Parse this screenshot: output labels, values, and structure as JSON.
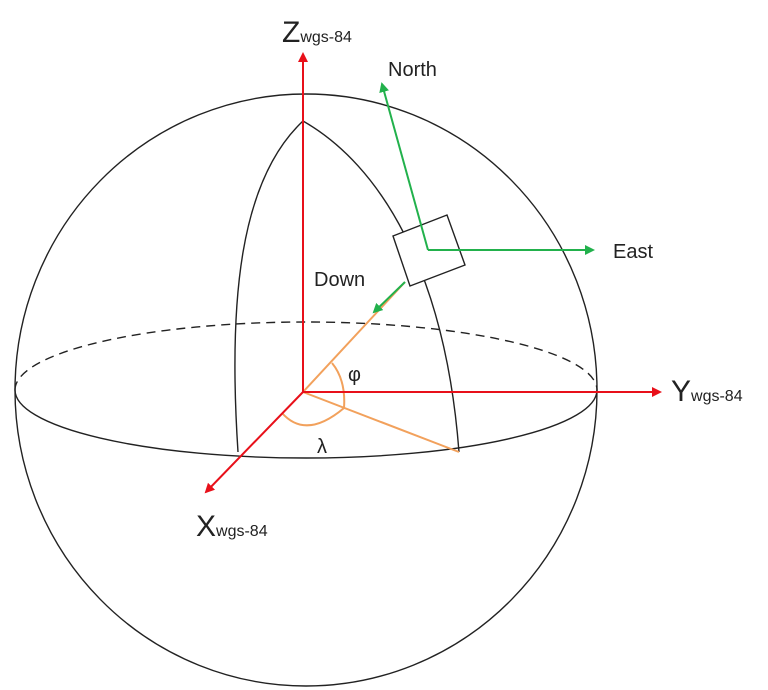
{
  "diagram": {
    "axes": {
      "z": {
        "main": "Z",
        "sub": "wgs-84"
      },
      "y": {
        "main": "Y",
        "sub": "wgs-84"
      },
      "x": {
        "main": "X",
        "sub": "wgs-84"
      }
    },
    "local_frame": {
      "north": "North",
      "east": "East",
      "down": "Down"
    },
    "angles": {
      "latitude": "φ",
      "longitude": "λ"
    }
  },
  "colors": {
    "axis": "#e8101a",
    "local_frame": "#22b14c",
    "angle_lines": "#f2a15c",
    "outline": "#222222"
  }
}
